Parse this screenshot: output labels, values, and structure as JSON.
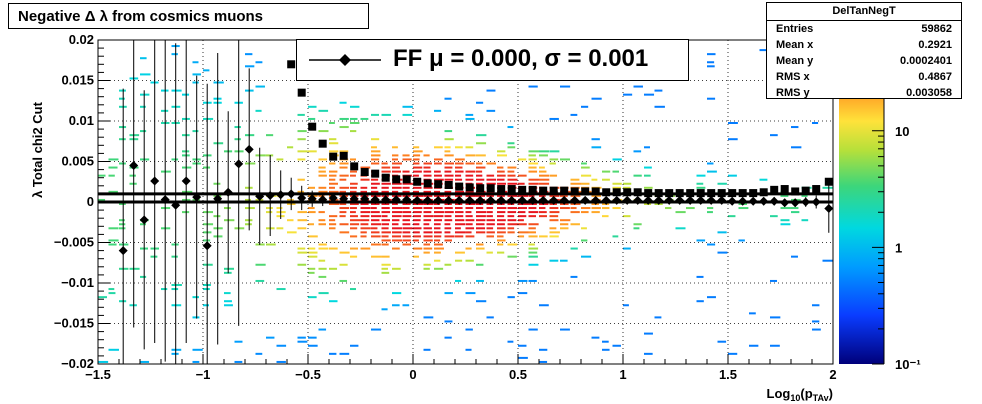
{
  "title": "Negative Δ λ from cosmics muons",
  "stats": {
    "name": "DelTanNegT",
    "rows": [
      {
        "label": "Entries",
        "value": "59862"
      },
      {
        "label": "Mean x",
        "value": "0.2921"
      },
      {
        "label": "Mean y",
        "value": "0.0002401"
      },
      {
        "label": "RMS x",
        "value": "0.4867"
      },
      {
        "label": "RMS y",
        "value": "0.003058"
      }
    ]
  },
  "legend": {
    "text": "FF μ =  0.000, σ =   0.001"
  },
  "colors": {
    "frame": "#000000",
    "marker": "#000000",
    "grid": "#000000"
  },
  "chart_data": {
    "type": "heatmap",
    "xlabel": "Log10(pTAv)",
    "ylabel": "λ Total chi2 Cut",
    "xlim": [
      -1.5,
      2.0
    ],
    "ylim": [
      -0.02,
      0.02
    ],
    "x_ticks": [
      -1.5,
      -1,
      -0.5,
      0,
      0.5,
      1,
      1.5,
      2
    ],
    "x_tick_labels": [
      "−1.5",
      "−1",
      "−0.5",
      "0",
      "0.5",
      "1",
      "1.5",
      "2"
    ],
    "y_ticks": [
      -0.02,
      -0.015,
      -0.01,
      -0.005,
      0,
      0.005,
      0.01,
      0.015,
      0.02
    ],
    "y_tick_labels": [
      "−0.02",
      "−0.015",
      "−0.01",
      "−0.005",
      "0",
      "0.005",
      "0.01",
      "0.015",
      "0.02"
    ],
    "grid": true,
    "colorbar": {
      "scale": "log",
      "range": [
        0.1,
        60
      ],
      "ticks": [
        0.1,
        1,
        10
      ],
      "tick_labels": [
        "10⁻¹",
        "1",
        "10"
      ]
    },
    "horizontal_lines": [
      0.001,
      0.0
    ],
    "series": [
      {
        "name": "mean",
        "marker": "diamond",
        "x": [
          -1.38,
          -1.33,
          -1.28,
          -1.23,
          -1.18,
          -1.13,
          -1.08,
          -1.03,
          -0.98,
          -0.93,
          -0.88,
          -0.83,
          -0.78,
          -0.73,
          -0.68,
          -0.63,
          -0.58,
          -0.53,
          -0.48,
          -0.43,
          -0.38,
          -0.33,
          -0.28,
          -0.23,
          -0.18,
          -0.13,
          -0.08,
          -0.03,
          0.02,
          0.07,
          0.12,
          0.17,
          0.22,
          0.27,
          0.32,
          0.37,
          0.42,
          0.47,
          0.52,
          0.57,
          0.62,
          0.67,
          0.72,
          0.77,
          0.82,
          0.87,
          0.92,
          0.97,
          1.02,
          1.07,
          1.12,
          1.17,
          1.22,
          1.27,
          1.32,
          1.37,
          1.42,
          1.47,
          1.52,
          1.57,
          1.62,
          1.67,
          1.72,
          1.77,
          1.82,
          1.87,
          1.92,
          1.98
        ],
        "y": [
          -0.006,
          0.0045,
          -0.0022,
          0.0026,
          0.0003,
          -0.0004,
          0.0026,
          0.0006,
          -0.0054,
          0.0004,
          0.0012,
          0.0047,
          0.0065,
          0.0007,
          0.0008,
          0.0009,
          0.001,
          0.0005,
          0.0004,
          0.0003,
          0.0005,
          0.0004,
          0.0004,
          0.0004,
          0.0003,
          0.0003,
          0.0003,
          0.0003,
          0.0002,
          0.0002,
          0.0002,
          0.0002,
          0.0002,
          0.0002,
          0.0002,
          0.0002,
          0.0002,
          0.0002,
          0.0002,
          0.0002,
          0.0002,
          0.0002,
          0.0002,
          0.0002,
          0.0002,
          0.0002,
          0.0002,
          0.0002,
          0.0002,
          0.0002,
          0.0002,
          0.0002,
          0.0002,
          0.0002,
          0.0002,
          0.0002,
          0.0002,
          0.0002,
          0.0001,
          0.0001,
          0.0001,
          0.0001,
          0.0001,
          -0.0001,
          -0.0001,
          0.0,
          0.0,
          -0.0008
        ],
        "err": [
          0.02,
          0.02,
          0.016,
          0.02,
          0.02,
          0.02,
          0.02,
          0.015,
          0.02,
          0.018,
          0.01,
          0.02,
          0.01,
          0.006,
          0.005,
          0.003,
          0.002,
          0.0015,
          0.001,
          0.0008,
          0.0006,
          0.0005,
          0.0004,
          0.0003,
          0.0003,
          0.0002,
          0.0002,
          0.0002,
          0.0002,
          0.0002,
          0.0002,
          0.0002,
          0.0002,
          0.0002,
          0.0002,
          0.0002,
          0.0002,
          0.0002,
          0.0002,
          0.0002,
          0.0002,
          0.0002,
          0.0002,
          0.0002,
          0.0002,
          0.0002,
          0.0002,
          0.0002,
          0.0002,
          0.0002,
          0.0002,
          0.0002,
          0.0002,
          0.0002,
          0.0003,
          0.0003,
          0.0003,
          0.0003,
          0.0003,
          0.0004,
          0.0004,
          0.0004,
          0.0005,
          0.0005,
          0.0005,
          0.0006,
          0.0008,
          0.003
        ]
      },
      {
        "name": "rms",
        "marker": "square",
        "x": [
          -0.58,
          -0.53,
          -0.48,
          -0.43,
          -0.38,
          -0.33,
          -0.28,
          -0.23,
          -0.18,
          -0.13,
          -0.08,
          -0.03,
          0.02,
          0.07,
          0.12,
          0.17,
          0.22,
          0.27,
          0.32,
          0.37,
          0.42,
          0.47,
          0.52,
          0.57,
          0.62,
          0.67,
          0.72,
          0.77,
          0.82,
          0.87,
          0.92,
          0.97,
          1.02,
          1.07,
          1.12,
          1.17,
          1.22,
          1.27,
          1.32,
          1.37,
          1.42,
          1.47,
          1.52,
          1.57,
          1.62,
          1.67,
          1.72,
          1.77,
          1.82,
          1.87,
          1.92,
          1.98
        ],
        "y": [
          0.017,
          0.0135,
          0.0093,
          0.0072,
          0.0056,
          0.0057,
          0.0044,
          0.0037,
          0.0035,
          0.003,
          0.0028,
          0.0028,
          0.0025,
          0.0023,
          0.0022,
          0.0021,
          0.0019,
          0.0018,
          0.0017,
          0.0017,
          0.0016,
          0.0016,
          0.0015,
          0.0015,
          0.0014,
          0.0014,
          0.0014,
          0.0013,
          0.0013,
          0.0013,
          0.0012,
          0.0012,
          0.0012,
          0.0012,
          0.0011,
          0.0011,
          0.0011,
          0.0011,
          0.0011,
          0.0011,
          0.0011,
          0.0011,
          0.0011,
          0.0011,
          0.0011,
          0.0012,
          0.0015,
          0.0016,
          0.0013,
          0.0014,
          0.0016,
          0.0025
        ]
      }
    ]
  }
}
